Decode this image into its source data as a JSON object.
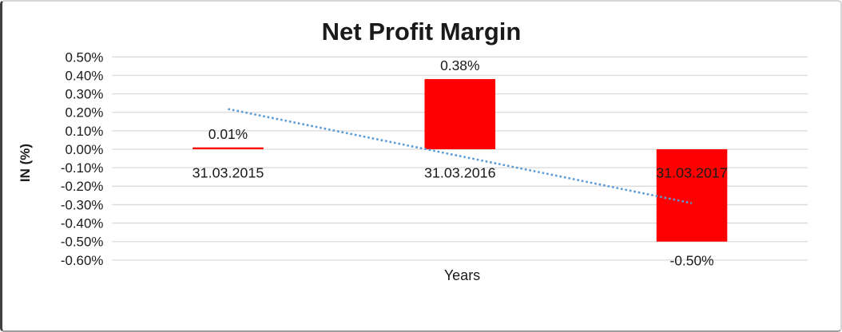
{
  "chart_data": {
    "type": "bar",
    "title": "Net Profit Margin",
    "xlabel": "Years",
    "ylabel": "IN (%)",
    "categories": [
      "31.03.2015",
      "31.03.2016",
      "31.03.2017"
    ],
    "values": [
      0.01,
      0.38,
      -0.5
    ],
    "data_labels": [
      "0.01%",
      "0.38%",
      "-0.50%"
    ],
    "y_ticks": [
      "0.50%",
      "0.40%",
      "0.30%",
      "0.20%",
      "0.10%",
      "0.00%",
      "-0.10%",
      "-0.20%",
      "-0.30%",
      "-0.40%",
      "-0.50%",
      "-0.60%"
    ],
    "ylim": [
      -0.6,
      0.5
    ],
    "y_tick_step": 0.1,
    "grid": "horizontal",
    "legend": "none",
    "trendline": {
      "type": "linear",
      "style": "dotted",
      "color": "#5B9BD5",
      "endpoints_pct": [
        0.218,
        -0.292
      ]
    },
    "colors": {
      "bar": "#FF0000",
      "gridline": "#DADADA",
      "text": "#1A1A1A",
      "background": "#FFFFFF",
      "frame_border": "#D6D6D6"
    }
  }
}
